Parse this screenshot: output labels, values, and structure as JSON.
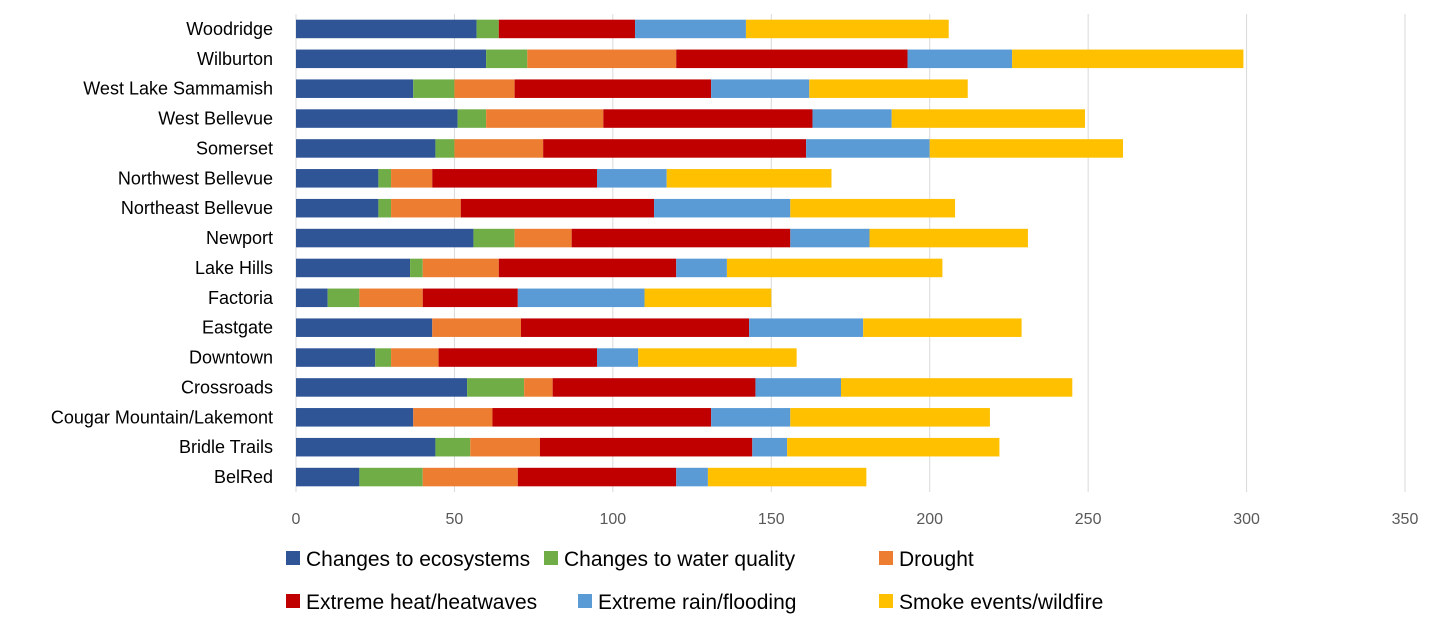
{
  "chart_data": {
    "type": "bar",
    "orientation": "horizontal",
    "stacked": true,
    "title": "",
    "xlabel": "",
    "ylabel": "",
    "xlim": [
      0,
      350
    ],
    "xticks": [
      0,
      50,
      100,
      150,
      200,
      250,
      300,
      350
    ],
    "grid": true,
    "legend_position": "bottom",
    "categories": [
      "Woodridge",
      "Wilburton",
      "West Lake Sammamish",
      "West Bellevue",
      "Somerset",
      "Northwest Bellevue",
      "Northeast Bellevue",
      "Newport",
      "Lake Hills",
      "Factoria",
      "Eastgate",
      "Downtown",
      "Crossroads",
      "Cougar Mountain/Lakemont",
      "Bridle Trails",
      "BelRed"
    ],
    "series": [
      {
        "name": "Changes to ecosystems",
        "color": "#2f5597",
        "values": [
          57,
          60,
          37,
          51,
          44,
          26,
          26,
          56,
          36,
          10,
          43,
          25,
          54,
          37,
          44,
          20
        ]
      },
      {
        "name": "Changes to water quality",
        "color": "#70ad47",
        "values": [
          7,
          13,
          13,
          9,
          6,
          4,
          4,
          13,
          4,
          10,
          0,
          5,
          18,
          0,
          11,
          20
        ]
      },
      {
        "name": "Drought",
        "color": "#ed7d31",
        "values": [
          0,
          47,
          19,
          37,
          28,
          13,
          22,
          18,
          24,
          20,
          28,
          15,
          9,
          25,
          22,
          30
        ]
      },
      {
        "name": "Extreme heat/heatwaves",
        "color": "#c00000",
        "values": [
          43,
          73,
          62,
          66,
          83,
          52,
          61,
          69,
          56,
          30,
          72,
          50,
          64,
          69,
          67,
          50
        ]
      },
      {
        "name": "Extreme rain/flooding",
        "color": "#5b9bd5",
        "values": [
          35,
          33,
          31,
          25,
          39,
          22,
          43,
          25,
          16,
          40,
          36,
          13,
          27,
          25,
          11,
          10
        ]
      },
      {
        "name": "Smoke events/wildfire",
        "color": "#ffc000",
        "values": [
          64,
          73,
          50,
          61,
          61,
          52,
          52,
          50,
          68,
          40,
          50,
          50,
          73,
          63,
          67,
          50
        ]
      }
    ]
  }
}
